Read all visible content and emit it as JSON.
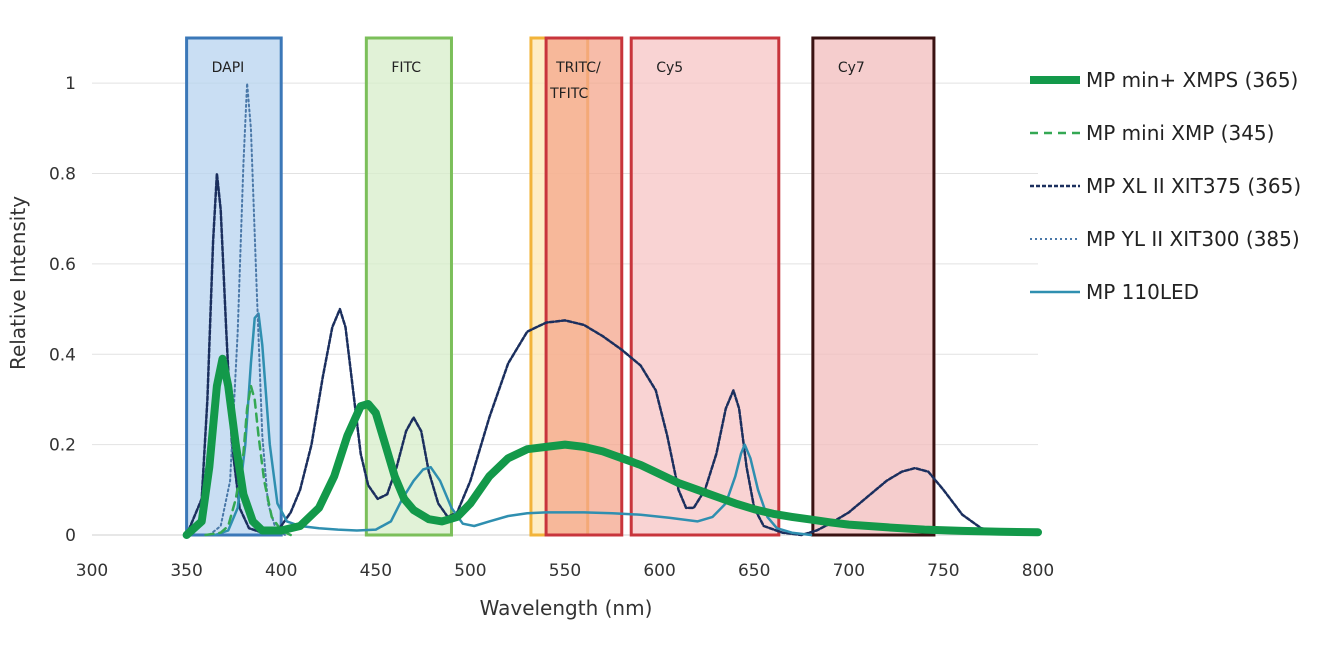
{
  "chart_data": {
    "type": "line",
    "xlabel": "Wavelength (nm)",
    "ylabel": "Relative Intensity",
    "xlim": [
      300,
      800
    ],
    "ylim": [
      0,
      1.0
    ],
    "x_ticks": [
      300,
      350,
      400,
      450,
      500,
      550,
      600,
      650,
      700,
      750,
      800
    ],
    "y_ticks": [
      0,
      0.2,
      0.4,
      0.6,
      0.8,
      1
    ],
    "y_tick_labels": [
      "0",
      "0.2",
      "0.4",
      "0.6",
      "0.8",
      "1"
    ],
    "grid": "horizontal",
    "legend_position": "right",
    "bands": [
      {
        "label": "DAPI",
        "range": [
          350,
          400
        ],
        "fill": "#b7d3ef",
        "stroke": "#3b78b8"
      },
      {
        "label": "FITC",
        "range": [
          445,
          490
        ],
        "fill": "#d7eec9",
        "stroke": "#7bbf5a"
      },
      {
        "label": "",
        "range": [
          532,
          562
        ],
        "fill": "#fde7b0",
        "stroke": "#f2b43a"
      },
      {
        "label": "TRITC/\nTFITC",
        "range": [
          540,
          580
        ],
        "fill": "#f4a58c",
        "stroke": "#c8353c"
      },
      {
        "label": "Cy5",
        "range": [
          585,
          663
        ],
        "fill": "#f7c4c4",
        "stroke": "#c8353c"
      },
      {
        "label": "Cy7",
        "range": [
          681,
          745
        ],
        "fill": "#f2bcbc",
        "stroke": "#3a1212"
      }
    ],
    "series": [
      {
        "name": "MP min+ XMPS (365)",
        "color": "#13994a",
        "style": "thick",
        "points": [
          [
            350,
            0
          ],
          [
            358,
            0.03
          ],
          [
            362,
            0.15
          ],
          [
            366,
            0.33
          ],
          [
            369,
            0.39
          ],
          [
            372,
            0.33
          ],
          [
            376,
            0.2
          ],
          [
            380,
            0.09
          ],
          [
            385,
            0.03
          ],
          [
            390,
            0.01
          ],
          [
            400,
            0.01
          ],
          [
            410,
            0.02
          ],
          [
            420,
            0.06
          ],
          [
            428,
            0.13
          ],
          [
            435,
            0.22
          ],
          [
            442,
            0.285
          ],
          [
            446,
            0.29
          ],
          [
            450,
            0.27
          ],
          [
            455,
            0.2
          ],
          [
            460,
            0.13
          ],
          [
            465,
            0.08
          ],
          [
            470,
            0.055
          ],
          [
            478,
            0.035
          ],
          [
            485,
            0.03
          ],
          [
            493,
            0.04
          ],
          [
            500,
            0.07
          ],
          [
            510,
            0.13
          ],
          [
            520,
            0.17
          ],
          [
            530,
            0.19
          ],
          [
            540,
            0.195
          ],
          [
            550,
            0.2
          ],
          [
            560,
            0.195
          ],
          [
            570,
            0.185
          ],
          [
            580,
            0.17
          ],
          [
            590,
            0.155
          ],
          [
            600,
            0.135
          ],
          [
            610,
            0.115
          ],
          [
            620,
            0.1
          ],
          [
            630,
            0.085
          ],
          [
            640,
            0.07
          ],
          [
            650,
            0.057
          ],
          [
            660,
            0.047
          ],
          [
            670,
            0.04
          ],
          [
            680,
            0.034
          ],
          [
            690,
            0.028
          ],
          [
            700,
            0.023
          ],
          [
            720,
            0.017
          ],
          [
            740,
            0.012
          ],
          [
            760,
            0.009
          ],
          [
            780,
            0.007
          ],
          [
            800,
            0.006
          ]
        ]
      },
      {
        "name": "MP mini XMP (345)",
        "color": "#34a853",
        "style": "dashed",
        "points": [
          [
            360,
            0
          ],
          [
            368,
            0.005
          ],
          [
            372,
            0.02
          ],
          [
            376,
            0.08
          ],
          [
            380,
            0.18
          ],
          [
            382,
            0.28
          ],
          [
            384,
            0.33
          ],
          [
            386,
            0.3
          ],
          [
            388,
            0.22
          ],
          [
            391,
            0.12
          ],
          [
            395,
            0.04
          ],
          [
            400,
            0.01
          ],
          [
            405,
            0
          ]
        ]
      },
      {
        "name": "MP XL II XIT375 (365)",
        "color": "#1b2f5e",
        "style": "dashed-dark",
        "points": [
          [
            350,
            0
          ],
          [
            358,
            0.08
          ],
          [
            361,
            0.3
          ],
          [
            364,
            0.65
          ],
          [
            366,
            0.8
          ],
          [
            368,
            0.72
          ],
          [
            371,
            0.45
          ],
          [
            374,
            0.2
          ],
          [
            378,
            0.06
          ],
          [
            383,
            0.015
          ],
          [
            390,
            0.005
          ],
          [
            395,
            0.005
          ],
          [
            400,
            0.02
          ],
          [
            405,
            0.05
          ],
          [
            410,
            0.1
          ],
          [
            416,
            0.2
          ],
          [
            422,
            0.35
          ],
          [
            427,
            0.46
          ],
          [
            431,
            0.5
          ],
          [
            434,
            0.46
          ],
          [
            438,
            0.32
          ],
          [
            442,
            0.18
          ],
          [
            446,
            0.11
          ],
          [
            451,
            0.08
          ],
          [
            456,
            0.09
          ],
          [
            461,
            0.15
          ],
          [
            466,
            0.23
          ],
          [
            470,
            0.26
          ],
          [
            474,
            0.23
          ],
          [
            478,
            0.14
          ],
          [
            483,
            0.07
          ],
          [
            488,
            0.04
          ],
          [
            493,
            0.05
          ],
          [
            500,
            0.12
          ],
          [
            510,
            0.26
          ],
          [
            520,
            0.38
          ],
          [
            530,
            0.45
          ],
          [
            540,
            0.47
          ],
          [
            550,
            0.475
          ],
          [
            560,
            0.465
          ],
          [
            570,
            0.44
          ],
          [
            580,
            0.41
          ],
          [
            590,
            0.375
          ],
          [
            598,
            0.32
          ],
          [
            604,
            0.22
          ],
          [
            610,
            0.1
          ],
          [
            614,
            0.06
          ],
          [
            618,
            0.06
          ],
          [
            624,
            0.1
          ],
          [
            630,
            0.18
          ],
          [
            635,
            0.28
          ],
          [
            639,
            0.32
          ],
          [
            642,
            0.28
          ],
          [
            646,
            0.15
          ],
          [
            650,
            0.06
          ],
          [
            655,
            0.02
          ],
          [
            665,
            0.005
          ],
          [
            675,
            0
          ],
          [
            683,
            0.01
          ],
          [
            690,
            0.025
          ],
          [
            700,
            0.05
          ],
          [
            710,
            0.085
          ],
          [
            720,
            0.12
          ],
          [
            728,
            0.14
          ],
          [
            735,
            0.148
          ],
          [
            742,
            0.14
          ],
          [
            750,
            0.1
          ],
          [
            760,
            0.045
          ],
          [
            770,
            0.015
          ],
          [
            780,
            0.006
          ],
          [
            800,
            0.004
          ]
        ]
      },
      {
        "name": "MP YL II XIT300 (385)",
        "color": "#4a78a8",
        "style": "dotted",
        "points": [
          [
            362,
            0
          ],
          [
            368,
            0.02
          ],
          [
            373,
            0.12
          ],
          [
            377,
            0.45
          ],
          [
            380,
            0.82
          ],
          [
            382,
            1.0
          ],
          [
            384,
            0.9
          ],
          [
            387,
            0.55
          ],
          [
            390,
            0.22
          ],
          [
            393,
            0.07
          ],
          [
            397,
            0.015
          ],
          [
            402,
            0
          ]
        ]
      },
      {
        "name": "MP 110LED",
        "color": "#2f8fb0",
        "style": "solid",
        "points": [
          [
            365,
            0
          ],
          [
            372,
            0.01
          ],
          [
            377,
            0.06
          ],
          [
            381,
            0.2
          ],
          [
            384,
            0.38
          ],
          [
            386,
            0.48
          ],
          [
            388,
            0.49
          ],
          [
            390,
            0.42
          ],
          [
            394,
            0.2
          ],
          [
            398,
            0.07
          ],
          [
            403,
            0.03
          ],
          [
            410,
            0.02
          ],
          [
            420,
            0.015
          ],
          [
            430,
            0.012
          ],
          [
            440,
            0.01
          ],
          [
            450,
            0.012
          ],
          [
            458,
            0.03
          ],
          [
            464,
            0.08
          ],
          [
            470,
            0.12
          ],
          [
            475,
            0.145
          ],
          [
            479,
            0.15
          ],
          [
            484,
            0.12
          ],
          [
            490,
            0.06
          ],
          [
            496,
            0.025
          ],
          [
            502,
            0.02
          ],
          [
            510,
            0.03
          ],
          [
            520,
            0.042
          ],
          [
            530,
            0.048
          ],
          [
            540,
            0.05
          ],
          [
            550,
            0.05
          ],
          [
            560,
            0.05
          ],
          [
            575,
            0.048
          ],
          [
            590,
            0.045
          ],
          [
            605,
            0.038
          ],
          [
            620,
            0.03
          ],
          [
            628,
            0.04
          ],
          [
            635,
            0.07
          ],
          [
            640,
            0.13
          ],
          [
            643,
            0.18
          ],
          [
            645,
            0.2
          ],
          [
            648,
            0.17
          ],
          [
            652,
            0.1
          ],
          [
            657,
            0.04
          ],
          [
            662,
            0.015
          ],
          [
            670,
            0.005
          ],
          [
            680,
            0
          ]
        ]
      }
    ]
  }
}
